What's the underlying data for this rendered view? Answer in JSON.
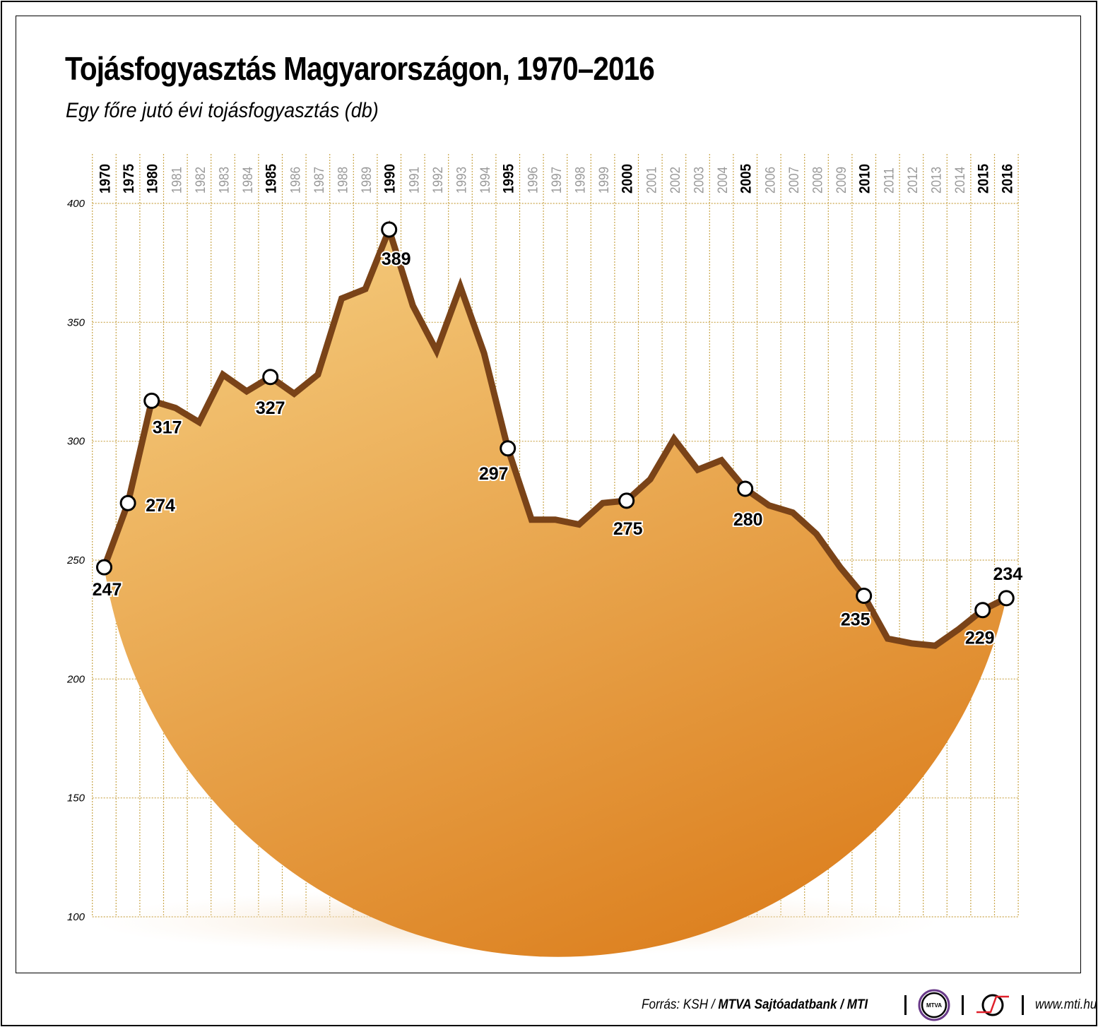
{
  "chart_data": {
    "type": "area",
    "title": "Tojásfogyasztás Magyarországon, 1970–2016",
    "subtitle": "Egy főre jutó évi tojásfogyasztás (db)",
    "x": [
      1970,
      1975,
      1980,
      1981,
      1982,
      1983,
      1984,
      1985,
      1986,
      1987,
      1988,
      1989,
      1990,
      1991,
      1992,
      1993,
      1994,
      1995,
      1996,
      1997,
      1998,
      1999,
      2000,
      2001,
      2002,
      2003,
      2004,
      2005,
      2006,
      2007,
      2008,
      2009,
      2010,
      2011,
      2012,
      2013,
      2014,
      2015,
      2016
    ],
    "values": [
      247,
      274,
      317,
      314,
      308,
      328,
      321,
      327,
      320,
      328,
      360,
      364,
      389,
      357,
      338,
      365,
      337,
      297,
      267,
      267,
      265,
      274,
      275,
      284,
      301,
      288,
      292,
      280,
      273,
      270,
      261,
      247,
      235,
      217,
      215,
      214,
      221,
      229,
      234
    ],
    "highlighted_years": [
      1970,
      1975,
      1980,
      1985,
      1990,
      1995,
      2000,
      2005,
      2010,
      2015,
      2016
    ],
    "data_labels": {
      "1970": "247",
      "1975": "274",
      "1980": "317",
      "1985": "327",
      "1990": "389",
      "1995": "297",
      "2000": "275",
      "2005": "280",
      "2010": "235",
      "2015": "229",
      "2016": "234"
    },
    "yticks": [
      100,
      150,
      200,
      250,
      300,
      350,
      400
    ],
    "ylim": [
      100,
      400
    ],
    "grid": true,
    "colors": {
      "line": "#7a4318",
      "fill_top": "#f4c97a",
      "fill_bottom": "#dc7f1e",
      "grid": "#c9a54a",
      "marker": "#ffffff"
    }
  },
  "footer": {
    "source_prefix": "Forrás: KSH / ",
    "source_bold": "MTVA Sajtóadatbank / MTI",
    "mtva_logo": "MTVA",
    "url": "www.mti.hu"
  }
}
